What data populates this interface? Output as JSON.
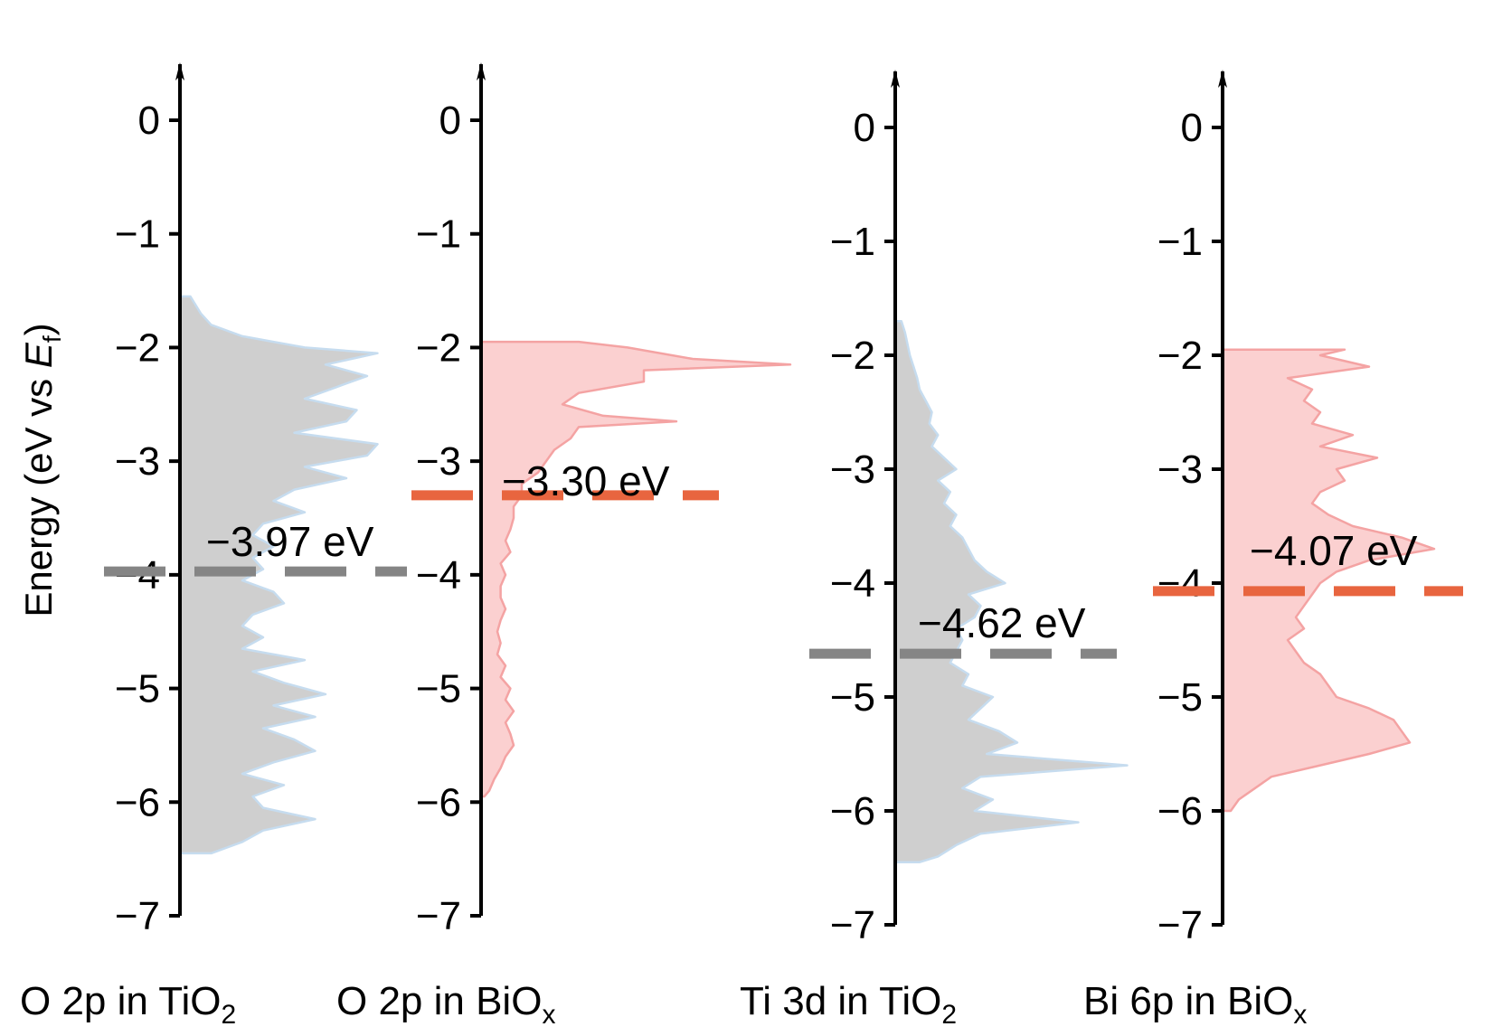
{
  "chart_data": {
    "type": "area",
    "ylabel_main": "Energy (eV vs ",
    "ylabel_italic": "E",
    "ylabel_sub": "f",
    "ylabel_end": ")",
    "ylim": [
      -7,
      0
    ],
    "yticks": [
      0,
      -1,
      -2,
      -3,
      -4,
      -5,
      -6,
      -7
    ],
    "ytick_labels": [
      "0",
      "−1",
      "−2",
      "−3",
      "−4",
      "−5",
      "−6",
      "−7"
    ],
    "colors": {
      "tio2_fill": "#cfcfcf",
      "tio2_edge": "#c6dcef",
      "biox_fill": "#fbd0d0",
      "biox_edge": "#f4a3a3",
      "tio2_band_line": "#858585",
      "biox_band_line": "#e8653f"
    },
    "panels": [
      {
        "label": {
          "pre": "O 2p in TiO",
          "sub": "2",
          "post": ""
        },
        "material": "TiO2",
        "band_center_eV": -3.97,
        "annotation": "−3.97 eV",
        "dos_energy": [
          -1.55,
          -1.7,
          -1.8,
          -1.9,
          -2.0,
          -2.05,
          -2.15,
          -2.25,
          -2.35,
          -2.45,
          -2.55,
          -2.65,
          -2.75,
          -2.85,
          -2.95,
          -3.05,
          -3.15,
          -3.25,
          -3.35,
          -3.45,
          -3.55,
          -3.65,
          -3.75,
          -3.85,
          -3.95,
          -4.05,
          -4.15,
          -4.25,
          -4.35,
          -4.45,
          -4.55,
          -4.65,
          -4.75,
          -4.85,
          -4.95,
          -5.05,
          -5.15,
          -5.25,
          -5.35,
          -5.45,
          -5.55,
          -5.65,
          -5.75,
          -5.85,
          -5.95,
          -6.05,
          -6.15,
          -6.25,
          -6.35,
          -6.45
        ],
        "dos_values": [
          0.05,
          0.1,
          0.15,
          0.3,
          0.6,
          0.95,
          0.7,
          0.9,
          0.75,
          0.6,
          0.85,
          0.8,
          0.55,
          0.95,
          0.9,
          0.6,
          0.8,
          0.55,
          0.45,
          0.6,
          0.4,
          0.35,
          0.45,
          0.35,
          0.4,
          0.3,
          0.45,
          0.5,
          0.35,
          0.3,
          0.4,
          0.3,
          0.6,
          0.35,
          0.5,
          0.7,
          0.45,
          0.65,
          0.4,
          0.55,
          0.65,
          0.45,
          0.3,
          0.5,
          0.35,
          0.4,
          0.65,
          0.4,
          0.3,
          0.15
        ]
      },
      {
        "label": {
          "pre": "O 2p in BiO",
          "sub": "x",
          "post": ""
        },
        "material": "BiOx",
        "band_center_eV": -3.3,
        "annotation": "−3.30 eV",
        "dos_energy": [
          -1.95,
          -2.0,
          -2.1,
          -2.15,
          -2.2,
          -2.3,
          -2.4,
          -2.5,
          -2.6,
          -2.65,
          -2.7,
          -2.8,
          -2.9,
          -3.0,
          -3.1,
          -3.2,
          -3.3,
          -3.4,
          -3.5,
          -3.6,
          -3.7,
          -3.8,
          -3.9,
          -4.0,
          -4.1,
          -4.2,
          -4.3,
          -4.4,
          -4.5,
          -4.6,
          -4.7,
          -4.8,
          -4.9,
          -5.0,
          -5.1,
          -5.2,
          -5.3,
          -5.4,
          -5.5,
          -5.6,
          -5.7,
          -5.8,
          -5.9,
          -5.95
        ],
        "dos_values": [
          0.6,
          0.9,
          1.3,
          1.9,
          1.0,
          1.0,
          0.6,
          0.5,
          0.75,
          1.2,
          0.6,
          0.55,
          0.45,
          0.4,
          0.35,
          0.25,
          0.25,
          0.2,
          0.2,
          0.18,
          0.15,
          0.18,
          0.12,
          0.15,
          0.12,
          0.12,
          0.15,
          0.12,
          0.1,
          0.12,
          0.1,
          0.15,
          0.12,
          0.18,
          0.15,
          0.2,
          0.15,
          0.18,
          0.2,
          0.15,
          0.12,
          0.08,
          0.05,
          0.02
        ]
      },
      {
        "label": {
          "pre": "Ti 3d in TiO",
          "sub": "2",
          "post": ""
        },
        "material": "TiO2",
        "band_center_eV": -4.62,
        "annotation": "−4.62 eV",
        "dos_energy": [
          -1.7,
          -1.8,
          -1.9,
          -2.0,
          -2.1,
          -2.2,
          -2.3,
          -2.4,
          -2.5,
          -2.6,
          -2.7,
          -2.8,
          -2.9,
          -3.0,
          -3.1,
          -3.2,
          -3.3,
          -3.4,
          -3.5,
          -3.6,
          -3.7,
          -3.8,
          -3.9,
          -4.0,
          -4.1,
          -4.2,
          -4.3,
          -4.4,
          -4.5,
          -4.6,
          -4.7,
          -4.8,
          -4.9,
          -5.0,
          -5.1,
          -5.2,
          -5.3,
          -5.4,
          -5.5,
          -5.6,
          -5.7,
          -5.8,
          -5.9,
          -6.0,
          -6.1,
          -6.2,
          -6.3,
          -6.4,
          -6.45
        ],
        "dos_values": [
          0.05,
          0.08,
          0.1,
          0.12,
          0.15,
          0.18,
          0.2,
          0.25,
          0.3,
          0.28,
          0.35,
          0.3,
          0.4,
          0.5,
          0.35,
          0.45,
          0.4,
          0.5,
          0.45,
          0.55,
          0.6,
          0.65,
          0.75,
          0.9,
          0.6,
          0.7,
          0.65,
          0.5,
          0.55,
          0.5,
          0.45,
          0.6,
          0.55,
          0.8,
          0.7,
          0.6,
          0.85,
          1.0,
          0.75,
          1.9,
          0.7,
          0.55,
          0.8,
          0.65,
          1.5,
          0.7,
          0.5,
          0.35,
          0.2
        ]
      },
      {
        "label": {
          "pre": "Bi 6p in BiO",
          "sub": "x",
          "post": ""
        },
        "material": "BiOx",
        "band_center_eV": -4.07,
        "annotation": "−4.07 eV",
        "dos_energy": [
          -1.95,
          -2.0,
          -2.1,
          -2.2,
          -2.3,
          -2.4,
          -2.5,
          -2.6,
          -2.7,
          -2.8,
          -2.9,
          -3.0,
          -3.1,
          -3.2,
          -3.3,
          -3.4,
          -3.5,
          -3.6,
          -3.7,
          -3.8,
          -3.9,
          -4.0,
          -4.1,
          -4.2,
          -4.3,
          -4.4,
          -4.5,
          -4.6,
          -4.7,
          -4.8,
          -4.9,
          -5.0,
          -5.1,
          -5.2,
          -5.3,
          -5.4,
          -5.5,
          -5.6,
          -5.7,
          -5.8,
          -5.9,
          -6.0
        ],
        "dos_values": [
          0.75,
          0.6,
          0.9,
          0.4,
          0.55,
          0.5,
          0.6,
          0.55,
          0.8,
          0.6,
          0.95,
          0.7,
          0.75,
          0.6,
          0.55,
          0.65,
          0.8,
          1.1,
          1.3,
          0.9,
          0.7,
          0.6,
          0.55,
          0.5,
          0.45,
          0.5,
          0.4,
          0.45,
          0.5,
          0.6,
          0.65,
          0.7,
          0.9,
          1.05,
          1.1,
          1.15,
          0.9,
          0.6,
          0.3,
          0.2,
          0.1,
          0.05
        ]
      }
    ]
  }
}
